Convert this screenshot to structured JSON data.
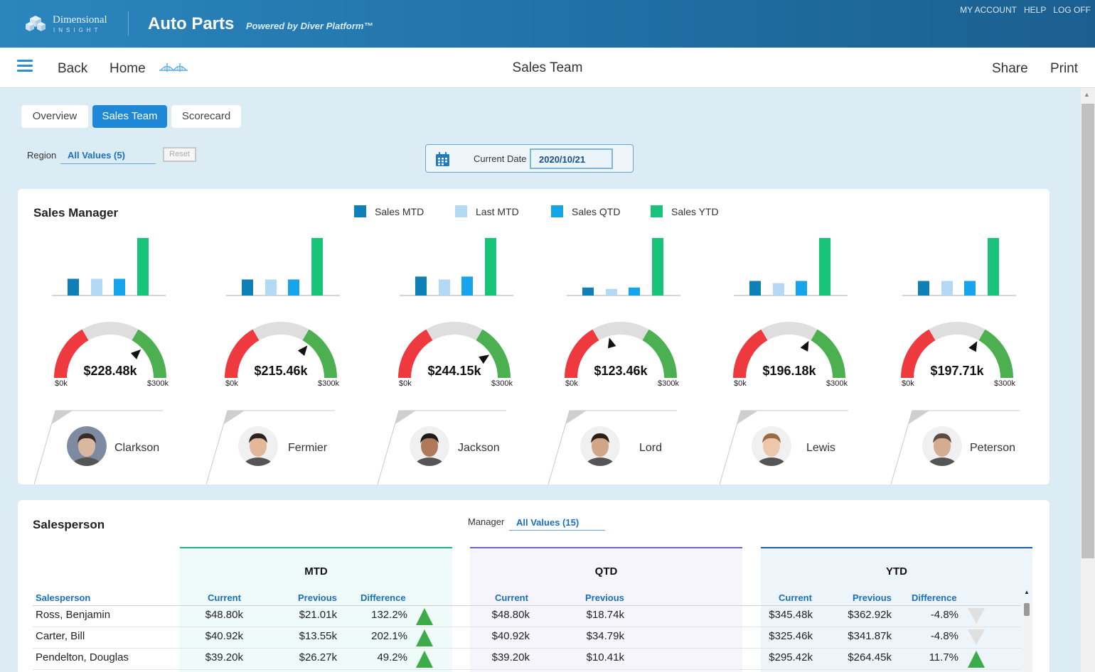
{
  "header": {
    "logo_line1": "Dimensional",
    "logo_line2": "INSIGHT",
    "app_title": "Auto Parts",
    "powered_by": "Powered by Diver Platform™",
    "links": [
      "MY ACCOUNT",
      "HELP",
      "LOG OFF"
    ]
  },
  "nav": {
    "back": "Back",
    "home": "Home",
    "page_title": "Sales Team",
    "share": "Share",
    "print": "Print"
  },
  "tabs": [
    {
      "label": "Overview",
      "active": false
    },
    {
      "label": "Sales Team",
      "active": true
    },
    {
      "label": "Scorecard",
      "active": false
    }
  ],
  "filters": {
    "region_label": "Region",
    "region_value": "All Values (5)",
    "reset_label": "Reset",
    "date_label": "Current Date",
    "date_value": "2020/10/21"
  },
  "colors": {
    "sales_mtd": "#0f7fb8",
    "last_mtd": "#b4d9f5",
    "sales_qtd": "#16a5ea",
    "sales_ytd": "#17c47a",
    "gauge_red": "#ee3a3f",
    "gauge_gray": "#dedede",
    "gauge_green": "#4caf50",
    "accent": "#1e88d6",
    "up": "#3cab4a",
    "down": "#e0e0e0"
  },
  "sales_manager": {
    "title": "Sales Manager",
    "legend": [
      "Sales MTD",
      "Last MTD",
      "Sales QTD",
      "Sales YTD"
    ],
    "gauge_min": "$0k",
    "gauge_max": "$300k",
    "managers": [
      {
        "name": "Clarkson",
        "gauge_label": "$228.48k",
        "value_k": 228.48,
        "bars": [
          23,
          23,
          23,
          79
        ],
        "avatar_skin": "#d9b8a0",
        "avatar_hair": "#3a2b22",
        "avatar_bg": "#7e8aa0"
      },
      {
        "name": "Fermier",
        "gauge_label": "$215.46k",
        "value_k": 215.46,
        "bars": [
          22,
          22,
          22,
          79
        ],
        "avatar_skin": "#e2b89a",
        "avatar_hair": "#2a2320",
        "avatar_bg": "#f0f0f0"
      },
      {
        "name": "Jackson",
        "gauge_label": "$244.15k",
        "value_k": 244.15,
        "bars": [
          26,
          22,
          26,
          79
        ],
        "avatar_skin": "#b07a5a",
        "avatar_hair": "#1f1a18",
        "avatar_bg": "#f0f0f0"
      },
      {
        "name": "Lord",
        "gauge_label": "$123.46k",
        "value_k": 123.46,
        "bars": [
          11,
          9,
          11,
          79
        ],
        "avatar_skin": "#d1a587",
        "avatar_hair": "#2b1f18",
        "avatar_bg": "#f0f0f0"
      },
      {
        "name": "Lewis",
        "gauge_label": "$196.18k",
        "value_k": 196.18,
        "bars": [
          20,
          17,
          20,
          79
        ],
        "avatar_skin": "#edc7aa",
        "avatar_hair": "#9c6a42",
        "avatar_bg": "#f0f0f0"
      },
      {
        "name": "Peterson",
        "gauge_label": "$197.71k",
        "value_k": 197.71,
        "bars": [
          20,
          20,
          20,
          79
        ],
        "avatar_skin": "#d5ab92",
        "avatar_hair": "#5c4a3e",
        "avatar_bg": "#f0f0f0"
      }
    ]
  },
  "salesperson": {
    "title": "Salesperson",
    "manager_label": "Manager",
    "manager_value": "All Values (15)",
    "groups": [
      {
        "title": "MTD",
        "color": "#1fb58a",
        "bg": "#effbf8"
      },
      {
        "title": "QTD",
        "color": "#7b5fc6",
        "bg": "#f5f5fb"
      },
      {
        "title": "YTD",
        "color": "#1f5fa8",
        "bg": "#eef5fa"
      }
    ],
    "columns": {
      "salesperson": "Salesperson",
      "mtd_current": "Current",
      "mtd_previous": "Previous",
      "mtd_difference": "Difference",
      "qtd_current": "Current",
      "qtd_previous": "Previous",
      "ytd_current": "Current",
      "ytd_previous": "Previous",
      "ytd_difference": "Difference"
    },
    "rows": [
      {
        "name": "Ross, Benjamin",
        "mtd_cur": "$48.80k",
        "mtd_prev": "$21.01k",
        "mtd_diff": "132.2%",
        "mtd_trend": "up",
        "qtd_cur": "$48.80k",
        "qtd_prev": "$18.74k",
        "ytd_cur": "$345.48k",
        "ytd_prev": "$362.92k",
        "ytd_diff": "-4.8%",
        "ytd_trend": "down"
      },
      {
        "name": "Carter, Bill",
        "mtd_cur": "$40.92k",
        "mtd_prev": "$13.55k",
        "mtd_diff": "202.1%",
        "mtd_trend": "up",
        "qtd_cur": "$40.92k",
        "qtd_prev": "$34.79k",
        "ytd_cur": "$325.46k",
        "ytd_prev": "$341.87k",
        "ytd_diff": "-4.8%",
        "ytd_trend": "down"
      },
      {
        "name": "Pendelton, Douglas",
        "mtd_cur": "$39.20k",
        "mtd_prev": "$26.27k",
        "mtd_diff": "49.2%",
        "mtd_trend": "up",
        "qtd_cur": "$39.20k",
        "qtd_prev": "$10.41k",
        "ytd_cur": "$295.42k",
        "ytd_prev": "$264.45k",
        "ytd_diff": "11.7%",
        "ytd_trend": "up"
      }
    ]
  }
}
